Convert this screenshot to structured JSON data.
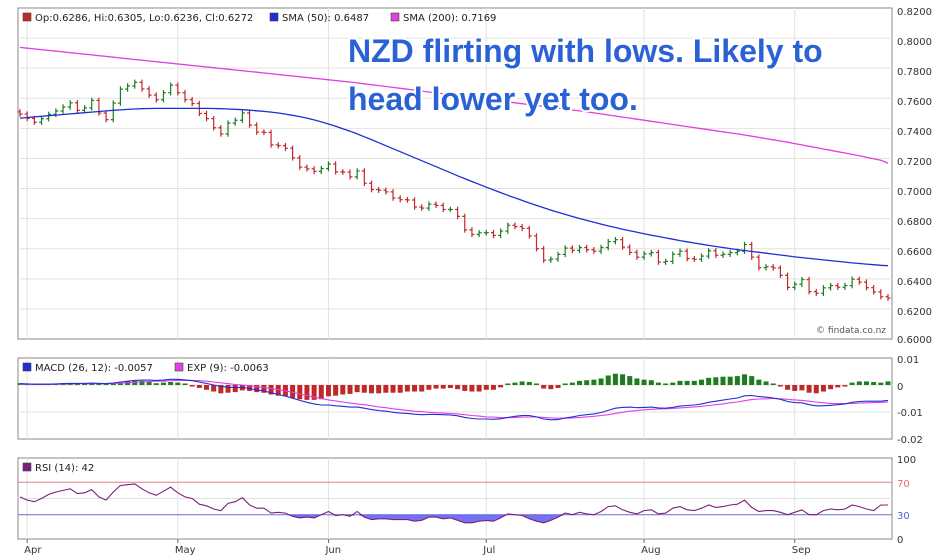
{
  "annotation": {
    "line1": "NZD flirting with lows. Likely to",
    "line2": "head lower yet too."
  },
  "watermark": "© findata.co.nz",
  "colors": {
    "up_candle": "#1e7b1e",
    "down_candle": "#c0282a",
    "sma50": "#1f2fd6",
    "sma200": "#e040e0",
    "macd_line": "#1f2fd6",
    "exp_line": "#e040e0",
    "macd_pos_bar": "#1e7b1e",
    "macd_neg_bar": "#c0282a",
    "rsi_line": "#7a1f7a",
    "rsi_fill": "#5b5bf0",
    "annotation_text": "#2a62d6",
    "grid": "#e2e2e2",
    "frame": "#8a8a8a"
  },
  "x_axis": {
    "labels": [
      "Apr",
      "May",
      "Jun",
      "Jul",
      "Aug",
      "Sep"
    ],
    "label_session_index": [
      1,
      22,
      43,
      65,
      87,
      108
    ]
  },
  "chart_data": [
    {
      "type": "candlestick",
      "panel": "price",
      "legend": {
        "ohlc": "Op:0.6286, Hi:0.6305, Lo:0.6236, Cl:0.6272",
        "sma50": "SMA (50): 0.6487",
        "sma200": "SMA (200): 0.7169"
      },
      "y_ticks": [
        "0.8200",
        "0.8000",
        "0.7800",
        "0.7600",
        "0.7400",
        "0.7200",
        "0.7000",
        "0.6800",
        "0.6600",
        "0.6400",
        "0.6200",
        "0.6000"
      ],
      "ylim": [
        0.6,
        0.82
      ],
      "close": [
        0.7495,
        0.7466,
        0.7441,
        0.7464,
        0.7493,
        0.7515,
        0.7542,
        0.757,
        0.752,
        0.7536,
        0.7586,
        0.7502,
        0.7458,
        0.7568,
        0.7661,
        0.7682,
        0.7706,
        0.7662,
        0.7621,
        0.759,
        0.7637,
        0.7687,
        0.7637,
        0.7591,
        0.7565,
        0.7499,
        0.7465,
        0.7404,
        0.7363,
        0.7435,
        0.7454,
        0.7502,
        0.7422,
        0.7375,
        0.7373,
        0.729,
        0.7285,
        0.7268,
        0.7204,
        0.7142,
        0.7131,
        0.7114,
        0.7133,
        0.7163,
        0.7111,
        0.7109,
        0.7078,
        0.7117,
        0.7035,
        0.6993,
        0.6989,
        0.6978,
        0.6937,
        0.6926,
        0.6924,
        0.6877,
        0.687,
        0.6896,
        0.6888,
        0.6861,
        0.6861,
        0.6815,
        0.6725,
        0.6695,
        0.6706,
        0.6707,
        0.6688,
        0.6717,
        0.6756,
        0.6747,
        0.6735,
        0.6685,
        0.66,
        0.6524,
        0.6531,
        0.6562,
        0.6604,
        0.6589,
        0.6608,
        0.6593,
        0.6584,
        0.6608,
        0.6647,
        0.666,
        0.6611,
        0.6576,
        0.6544,
        0.6566,
        0.6575,
        0.6511,
        0.6516,
        0.6563,
        0.6584,
        0.6534,
        0.653,
        0.6551,
        0.6586,
        0.6557,
        0.6563,
        0.6574,
        0.6583,
        0.6628,
        0.6544,
        0.6474,
        0.648,
        0.6472,
        0.6423,
        0.6343,
        0.6364,
        0.6395,
        0.6315,
        0.6304,
        0.634,
        0.6355,
        0.6344,
        0.6355,
        0.6397,
        0.6378,
        0.6341,
        0.6313,
        0.6281,
        0.6272
      ],
      "series": [
        {
          "name": "SMA (50)",
          "values": [
            0.7468,
            0.7472,
            0.7476,
            0.748,
            0.7484,
            0.7488,
            0.7492,
            0.7496,
            0.75,
            0.7504,
            0.7508,
            0.7512,
            0.7516,
            0.752,
            0.7523,
            0.7526,
            0.7529,
            0.7531,
            0.7532,
            0.7533,
            0.7533,
            0.7533,
            0.7533,
            0.7533,
            0.7533,
            0.7533,
            0.7533,
            0.7532,
            0.7531,
            0.7529,
            0.7527,
            0.7524,
            0.7521,
            0.7517,
            0.7513,
            0.7508,
            0.7502,
            0.7495,
            0.7487,
            0.7478,
            0.7468,
            0.7456,
            0.7443,
            0.7429,
            0.7414,
            0.7398,
            0.7381,
            0.7363,
            0.7344,
            0.7325,
            0.7305,
            0.7285,
            0.7265,
            0.7245,
            0.7225,
            0.7205,
            0.7185,
            0.7165,
            0.7145,
            0.7125,
            0.7105,
            0.7085,
            0.7066,
            0.7047,
            0.7028,
            0.7009,
            0.6991,
            0.6973,
            0.6955,
            0.6938,
            0.6921,
            0.6904,
            0.6888,
            0.6872,
            0.6857,
            0.6842,
            0.6828,
            0.6814,
            0.6801,
            0.6788,
            0.6776,
            0.6764,
            0.6752,
            0.6741,
            0.673,
            0.672,
            0.671,
            0.67,
            0.669,
            0.6681,
            0.6672,
            0.6663,
            0.6654,
            0.6646,
            0.6638,
            0.663,
            0.6622,
            0.6615,
            0.6608,
            0.6601,
            0.6594,
            0.6588,
            0.6582,
            0.6576,
            0.657,
            0.6564,
            0.6558,
            0.6552,
            0.6546,
            0.6541,
            0.6536,
            0.6531,
            0.6526,
            0.6521,
            0.6516,
            0.6511,
            0.6506,
            0.6502,
            0.6498,
            0.6494,
            0.649,
            0.6487
          ]
        },
        {
          "name": "SMA (200)",
          "values": [
            0.7938,
            0.7933,
            0.7928,
            0.7923,
            0.7918,
            0.7913,
            0.7908,
            0.7903,
            0.7898,
            0.7893,
            0.7888,
            0.7883,
            0.7878,
            0.7873,
            0.7868,
            0.7863,
            0.7858,
            0.7853,
            0.7848,
            0.7843,
            0.7838,
            0.7833,
            0.7828,
            0.7823,
            0.7818,
            0.7813,
            0.7808,
            0.7803,
            0.7798,
            0.7793,
            0.7788,
            0.7783,
            0.7778,
            0.7773,
            0.7768,
            0.7763,
            0.7758,
            0.7753,
            0.7748,
            0.7743,
            0.7738,
            0.7733,
            0.7728,
            0.7723,
            0.7718,
            0.7713,
            0.7708,
            0.7702,
            0.7696,
            0.769,
            0.7684,
            0.7678,
            0.7672,
            0.7666,
            0.766,
            0.7654,
            0.7648,
            0.7642,
            0.7636,
            0.763,
            0.7624,
            0.7618,
            0.7612,
            0.7606,
            0.76,
            0.7594,
            0.7588,
            0.7582,
            0.7576,
            0.757,
            0.7564,
            0.7558,
            0.7552,
            0.7546,
            0.754,
            0.7534,
            0.7528,
            0.7522,
            0.7516,
            0.751,
            0.7503,
            0.7496,
            0.7489,
            0.7482,
            0.7475,
            0.7468,
            0.7461,
            0.7454,
            0.7447,
            0.744,
            0.7433,
            0.7426,
            0.7419,
            0.7412,
            0.7405,
            0.7398,
            0.7391,
            0.7384,
            0.7377,
            0.737,
            0.7363,
            0.7356,
            0.7348,
            0.734,
            0.7332,
            0.7324,
            0.7316,
            0.7308,
            0.7299,
            0.729,
            0.7281,
            0.7272,
            0.7263,
            0.7254,
            0.7245,
            0.7236,
            0.7227,
            0.7218,
            0.7208,
            0.7198,
            0.7188,
            0.7169
          ]
        }
      ]
    },
    {
      "type": "bar+line",
      "panel": "macd",
      "legend": {
        "macd": "MACD (26, 12): -0.0057",
        "exp": "EXP (9): -0.0063"
      },
      "y_ticks": [
        "0.01",
        "0",
        "-0.01",
        "-0.02"
      ],
      "ylim": [
        -0.02,
        0.01
      ],
      "series": [
        {
          "name": "MACD (26, 12)",
          "values": [
            0.0005,
            0.0004,
            0.0003,
            0.0003,
            0.0003,
            0.0004,
            0.0005,
            0.0006,
            0.0006,
            0.0006,
            0.0007,
            0.0006,
            0.0005,
            0.0007,
            0.0011,
            0.0014,
            0.0017,
            0.0018,
            0.0018,
            0.0017,
            0.0018,
            0.0021,
            0.0021,
            0.0019,
            0.0016,
            0.0011,
            0.0006,
            0.0,
            -0.0006,
            -0.0008,
            -0.001,
            -0.0009,
            -0.0013,
            -0.0018,
            -0.0022,
            -0.0029,
            -0.0035,
            -0.0041,
            -0.0049,
            -0.0057,
            -0.0064,
            -0.007,
            -0.0074,
            -0.0074,
            -0.0077,
            -0.0079,
            -0.0082,
            -0.0082,
            -0.0086,
            -0.0091,
            -0.0095,
            -0.0097,
            -0.0101,
            -0.0104,
            -0.0105,
            -0.0108,
            -0.011,
            -0.0109,
            -0.0109,
            -0.011,
            -0.0111,
            -0.0114,
            -0.012,
            -0.0124,
            -0.0126,
            -0.0126,
            -0.0127,
            -0.0125,
            -0.012,
            -0.0116,
            -0.0113,
            -0.0113,
            -0.0118,
            -0.0126,
            -0.0129,
            -0.0128,
            -0.0122,
            -0.0118,
            -0.0113,
            -0.011,
            -0.0107,
            -0.0102,
            -0.0094,
            -0.0086,
            -0.0083,
            -0.0082,
            -0.0084,
            -0.0083,
            -0.0082,
            -0.0085,
            -0.0086,
            -0.0083,
            -0.0078,
            -0.0076,
            -0.0074,
            -0.007,
            -0.0064,
            -0.006,
            -0.0056,
            -0.0052,
            -0.0048,
            -0.004,
            -0.0039,
            -0.0043,
            -0.0045,
            -0.0048,
            -0.0053,
            -0.0061,
            -0.0065,
            -0.0066,
            -0.0073,
            -0.0077,
            -0.0077,
            -0.0075,
            -0.0073,
            -0.007,
            -0.0064,
            -0.0061,
            -0.006,
            -0.006,
            -0.006,
            -0.0057
          ]
        },
        {
          "name": "EXP (9)",
          "values": [
            0.0002,
            0.0003,
            0.0003,
            0.0003,
            0.0003,
            0.0003,
            0.0004,
            0.0004,
            0.0005,
            0.0005,
            0.0005,
            0.0005,
            0.0005,
            0.0006,
            0.0007,
            0.0008,
            0.001,
            0.0011,
            0.0013,
            0.0014,
            0.0014,
            0.0016,
            0.0017,
            0.0017,
            0.0017,
            0.0016,
            0.0014,
            0.0011,
            0.0008,
            0.0005,
            0.0002,
            -0.0,
            -0.0003,
            -0.0006,
            -0.0009,
            -0.0013,
            -0.0017,
            -0.0022,
            -0.0027,
            -0.0033,
            -0.0039,
            -0.0045,
            -0.005,
            -0.0055,
            -0.0059,
            -0.0063,
            -0.0067,
            -0.007,
            -0.0073,
            -0.0077,
            -0.0081,
            -0.0084,
            -0.0088,
            -0.0091,
            -0.0094,
            -0.0097,
            -0.0099,
            -0.0101,
            -0.0103,
            -0.0104,
            -0.0106,
            -0.0107,
            -0.011,
            -0.0113,
            -0.0115,
            -0.0118,
            -0.0119,
            -0.0121,
            -0.0121,
            -0.012,
            -0.0119,
            -0.0118,
            -0.0118,
            -0.012,
            -0.0122,
            -0.0123,
            -0.0123,
            -0.0122,
            -0.012,
            -0.0118,
            -0.0116,
            -0.0113,
            -0.011,
            -0.0105,
            -0.0101,
            -0.0097,
            -0.0095,
            -0.0092,
            -0.009,
            -0.0089,
            -0.0088,
            -0.0087,
            -0.0085,
            -0.0083,
            -0.0081,
            -0.0079,
            -0.0076,
            -0.0073,
            -0.007,
            -0.0066,
            -0.0063,
            -0.0058,
            -0.0054,
            -0.0052,
            -0.0051,
            -0.005,
            -0.0051,
            -0.0053,
            -0.0055,
            -0.0057,
            -0.006,
            -0.0063,
            -0.0066,
            -0.0068,
            -0.0069,
            -0.0069,
            -0.0068,
            -0.0067,
            -0.0066,
            -0.0065,
            -0.0064,
            -0.0063
          ]
        }
      ]
    },
    {
      "type": "line",
      "panel": "rsi",
      "legend": {
        "rsi": "RSI (14): 42"
      },
      "y_ticks": [
        "100",
        "70",
        "30",
        "0"
      ],
      "ylim": [
        0,
        100
      ],
      "reference_lines": [
        70,
        30
      ],
      "series": [
        {
          "name": "RSI (14)",
          "values": [
            52,
            48,
            46,
            50,
            55,
            58,
            60,
            62,
            56,
            57,
            61,
            52,
            48,
            58,
            66,
            67,
            68,
            62,
            57,
            54,
            59,
            64,
            57,
            52,
            50,
            43,
            41,
            37,
            35,
            44,
            46,
            51,
            42,
            38,
            38,
            32,
            33,
            32,
            28,
            26,
            27,
            26,
            30,
            34,
            29,
            30,
            28,
            34,
            27,
            24,
            25,
            25,
            24,
            24,
            24,
            22,
            23,
            27,
            27,
            25,
            26,
            23,
            20,
            20,
            22,
            23,
            22,
            26,
            31,
            30,
            29,
            25,
            22,
            20,
            23,
            27,
            32,
            30,
            33,
            31,
            30,
            34,
            40,
            41,
            36,
            33,
            31,
            35,
            36,
            31,
            32,
            38,
            40,
            36,
            35,
            38,
            42,
            39,
            40,
            42,
            43,
            48,
            39,
            34,
            35,
            35,
            33,
            30,
            33,
            36,
            30,
            30,
            35,
            37,
            36,
            37,
            42,
            40,
            37,
            35,
            42,
            42
          ]
        }
      ]
    }
  ]
}
